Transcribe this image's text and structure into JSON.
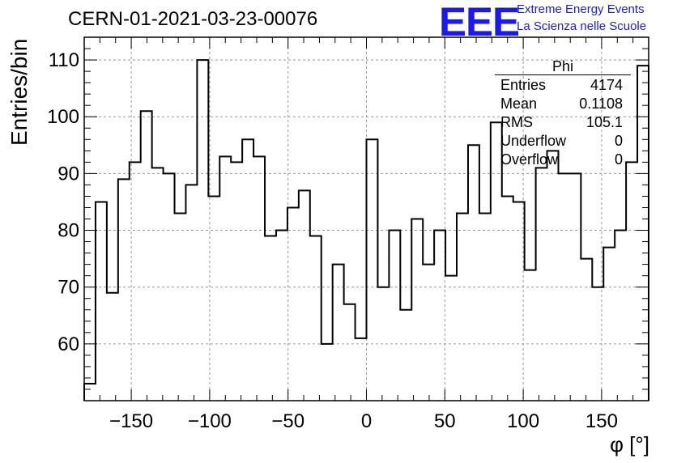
{
  "chart_data": {
    "type": "histogram",
    "title": "CERN-01-2021-03-23-00076",
    "xlabel": "φ [°]",
    "ylabel": "Entries/bin",
    "xlim": [
      -180,
      180
    ],
    "ylim": [
      50,
      114
    ],
    "xticks": [
      -150,
      -100,
      -50,
      0,
      50,
      100,
      150
    ],
    "yticks": [
      60,
      70,
      80,
      90,
      100,
      110
    ],
    "grid": true,
    "bin_edges_start": -180,
    "bin_width": 7.2,
    "values": [
      53,
      85,
      69,
      89,
      92,
      101,
      91,
      90,
      83,
      88,
      110,
      86,
      93,
      92,
      96,
      93,
      79,
      80,
      84,
      87,
      79,
      60,
      74,
      67,
      61,
      96,
      70,
      80,
      66,
      82,
      74,
      80,
      72,
      83,
      95,
      83,
      99,
      86,
      85,
      73,
      91,
      94,
      90,
      90,
      75,
      70,
      77,
      80,
      92,
      109
    ],
    "stats": {
      "name": "Phi",
      "rows": [
        {
          "label": "Entries",
          "value": "4174"
        },
        {
          "label": "Mean",
          "value": "0.1108"
        },
        {
          "label": "RMS",
          "value": "105.1"
        },
        {
          "label": "Underflow",
          "value": "0"
        },
        {
          "label": "Overflow",
          "value": "0"
        }
      ]
    }
  },
  "logo": {
    "text": "EEE",
    "line1": "Extreme Energy Events",
    "line2": "La Scienza nelle Scuole",
    "color": "#1a1af0"
  }
}
